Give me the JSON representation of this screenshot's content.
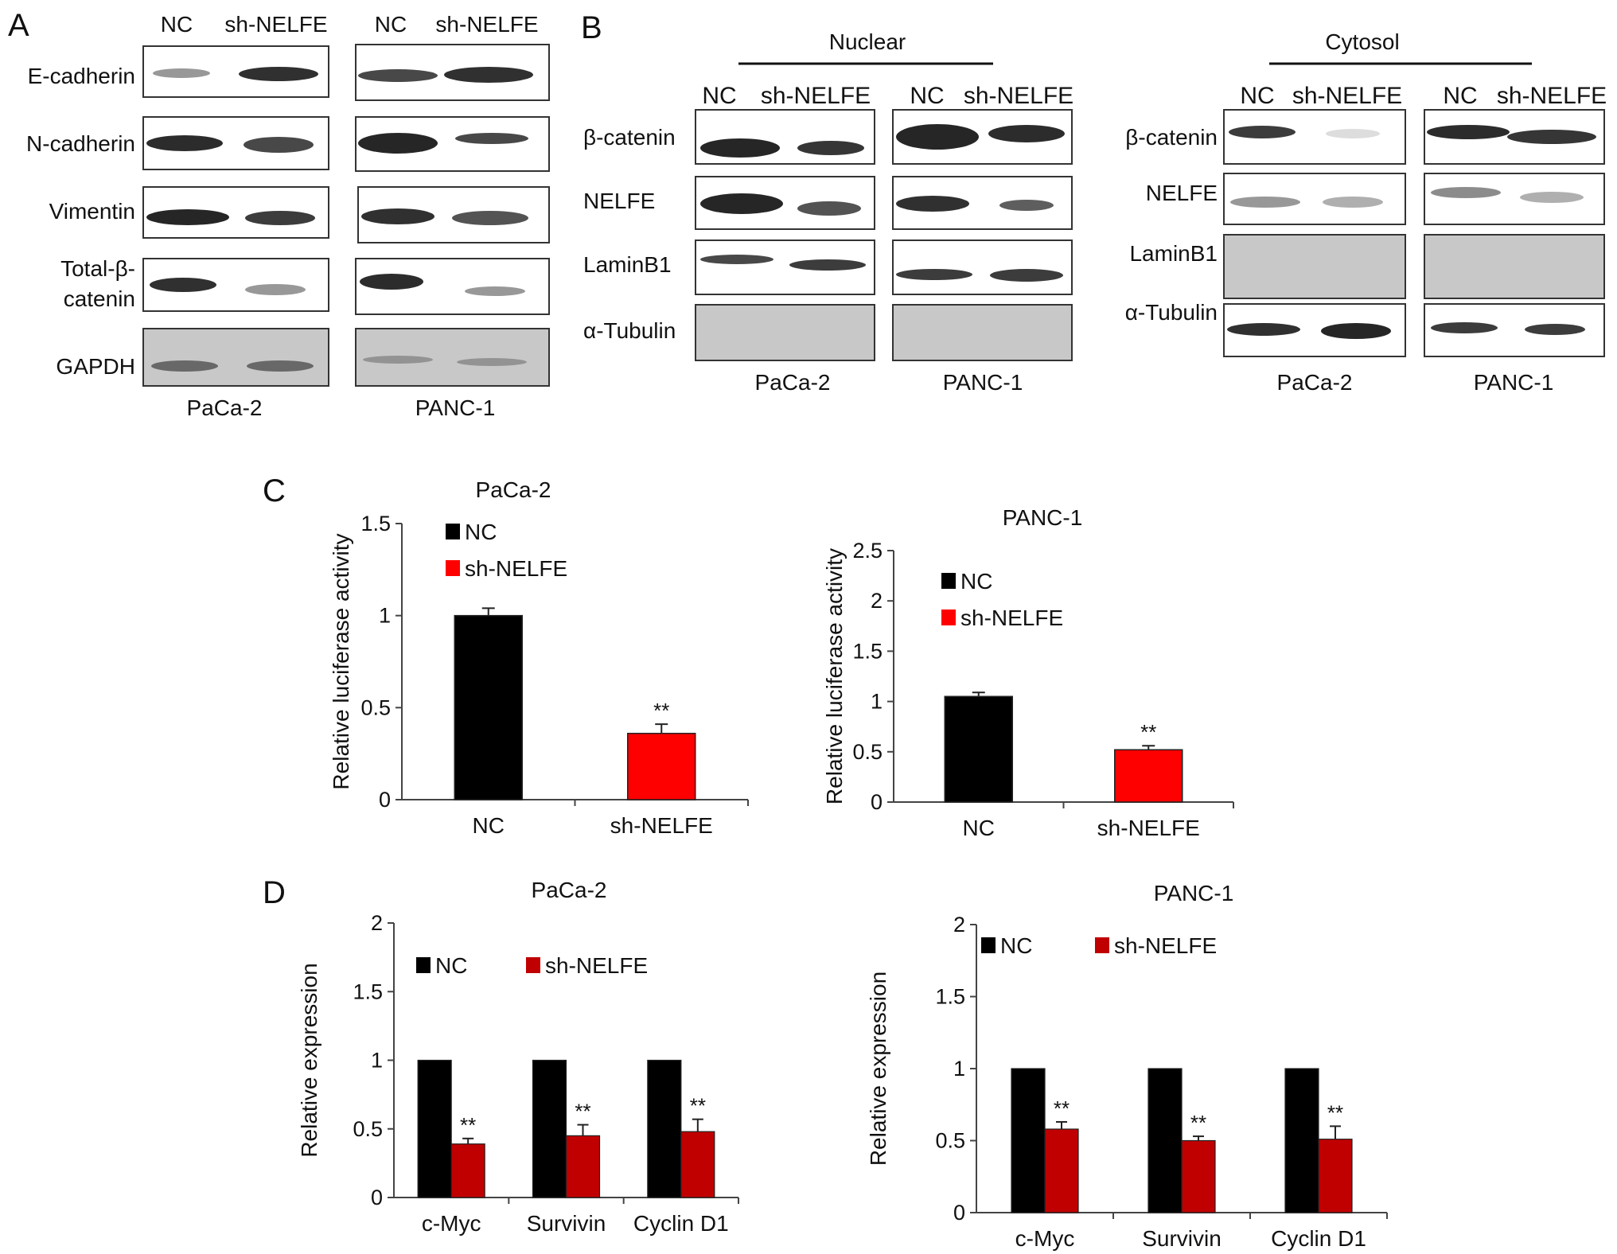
{
  "panels": {
    "A": {
      "letter": "A",
      "lanes": [
        "NC",
        "sh-NELFE"
      ],
      "rows": [
        "E-cadherin",
        "N-cadherin",
        "Vimentin",
        "Total-β-",
        "catenin",
        "GAPDH"
      ],
      "cell_lines": [
        "PaCa-2",
        "PANC-1"
      ]
    },
    "B": {
      "letter": "B",
      "fractions": [
        "Nuclear",
        "Cytosol"
      ],
      "lanes": [
        "NC",
        "sh-NELFE"
      ],
      "rows": [
        "β-catenin",
        "NELFE",
        "LaminB1",
        "α-Tubulin"
      ],
      "cell_lines": [
        "PaCa-2",
        "PANC-1"
      ]
    },
    "C": {
      "letter": "C"
    },
    "D": {
      "letter": "D"
    }
  },
  "chart_data": [
    {
      "panel": "C",
      "type": "bar",
      "title": "PaCa-2",
      "ylabel": "Relative luciferase activity",
      "xlabel": "",
      "categories": [
        "NC",
        "sh-NELFE"
      ],
      "values": [
        1.0,
        0.36
      ],
      "errors": [
        0.04,
        0.05
      ],
      "significance": [
        "",
        "**"
      ],
      "ylim": [
        0,
        1.5
      ],
      "yticks": [
        "0",
        "0.5",
        "1",
        "1.5"
      ],
      "colors": [
        "#000000",
        "#ff0000"
      ],
      "legend": {
        "position": "top-left",
        "entries": [
          "NC",
          "sh-NELFE"
        ]
      },
      "grid": false
    },
    {
      "panel": "C",
      "type": "bar",
      "title": "PANC-1",
      "ylabel": "Relative luciferase activity",
      "xlabel": "",
      "categories": [
        "NC",
        "sh-NELFE"
      ],
      "values": [
        1.05,
        0.52
      ],
      "errors": [
        0.04,
        0.04
      ],
      "significance": [
        "",
        "**"
      ],
      "ylim": [
        0,
        2.5
      ],
      "yticks": [
        "0",
        "0.5",
        "1",
        "1.5",
        "2",
        "2.5"
      ],
      "colors": [
        "#000000",
        "#ff0000"
      ],
      "legend": {
        "position": "top-left",
        "entries": [
          "NC",
          "sh-NELFE"
        ]
      },
      "grid": false
    },
    {
      "panel": "D",
      "type": "bar",
      "title": "PaCa-2",
      "ylabel": "Relative expression",
      "xlabel": "",
      "categories": [
        "c-Myc",
        "Survivin",
        "Cyclin D1"
      ],
      "series": [
        {
          "name": "NC",
          "values": [
            1.0,
            1.0,
            1.0
          ],
          "errors": [
            0,
            0,
            0
          ],
          "color": "#000000"
        },
        {
          "name": "sh-NELFE",
          "values": [
            0.39,
            0.45,
            0.48
          ],
          "errors": [
            0.04,
            0.08,
            0.09
          ],
          "color": "#c00000"
        }
      ],
      "significance": [
        "**",
        "**",
        "**"
      ],
      "ylim": [
        0,
        2
      ],
      "yticks": [
        "0",
        "0.5",
        "1",
        "1.5",
        "2"
      ],
      "legend": {
        "position": "top",
        "entries": [
          "NC",
          "sh-NELFE"
        ]
      },
      "grid": false
    },
    {
      "panel": "D",
      "type": "bar",
      "title": "PANC-1",
      "ylabel": "Relative expression",
      "xlabel": "",
      "categories": [
        "c-Myc",
        "Survivin",
        "Cyclin D1"
      ],
      "series": [
        {
          "name": "NC",
          "values": [
            1.0,
            1.0,
            1.0
          ],
          "errors": [
            0,
            0,
            0
          ],
          "color": "#000000"
        },
        {
          "name": "sh-NELFE",
          "values": [
            0.58,
            0.5,
            0.51
          ],
          "errors": [
            0.05,
            0.03,
            0.09
          ],
          "color": "#c00000"
        }
      ],
      "significance": [
        "**",
        "**",
        "**"
      ],
      "ylim": [
        0,
        2
      ],
      "yticks": [
        "0",
        "0.5",
        "1",
        "1.5",
        "2"
      ],
      "legend": {
        "position": "top",
        "entries": [
          "NC",
          "sh-NELFE"
        ]
      },
      "grid": false
    }
  ]
}
